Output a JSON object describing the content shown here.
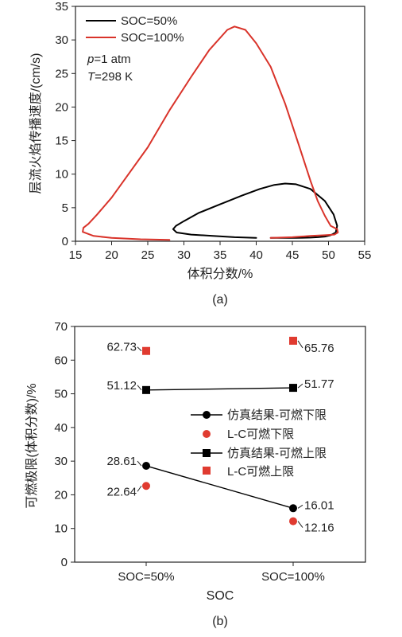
{
  "chart_data": [
    {
      "type": "line",
      "panel_label": "(a)",
      "xlabel": "体积分数/%",
      "ylabel": "层流火焰传播速度/(cm/s)",
      "xlim": [
        15,
        55
      ],
      "ylim": [
        0,
        35
      ],
      "xticks": [
        "15",
        "20",
        "25",
        "30",
        "35",
        "40",
        "45",
        "50",
        "55"
      ],
      "yticks": [
        "0",
        "5",
        "10",
        "15",
        "20",
        "25",
        "30",
        "35"
      ],
      "legend_position": "top-left",
      "conditions": {
        "pressure_label": "p",
        "pressure_value": "=1 atm",
        "temperature_label": "T",
        "temperature_value": "=298 K"
      },
      "series": [
        {
          "name": "SOC=50%",
          "color": "#000000",
          "x": [
            40.0,
            37.0,
            34.0,
            31.0,
            29.0,
            28.5,
            28.9,
            30.0,
            32.0,
            35.0,
            38.0,
            40.5,
            42.5,
            44.0,
            45.5,
            47.5,
            49.5,
            50.7,
            51.2,
            51.0,
            50.3,
            49.5,
            48.5,
            47.5,
            45.5,
            42.0
          ],
          "y": [
            0.5,
            0.6,
            0.8,
            1.0,
            1.3,
            1.8,
            2.3,
            3.0,
            4.2,
            5.5,
            6.8,
            7.8,
            8.4,
            8.6,
            8.5,
            7.8,
            6.0,
            4.0,
            2.3,
            1.3,
            0.9,
            0.7,
            0.6,
            0.55,
            0.5,
            0.5
          ]
        },
        {
          "name": "SOC=100%",
          "color": "#d9332a",
          "x": [
            28.0,
            24.0,
            20.0,
            17.5,
            16.0,
            16.1,
            16.8,
            18.0,
            20.0,
            22.0,
            25.0,
            28.0,
            31.0,
            33.5,
            36.0,
            37.0,
            38.5,
            40.0,
            42.0,
            44.0,
            46.0,
            47.5,
            48.5,
            49.5,
            50.3,
            51.2,
            51.3,
            50.8,
            49.5,
            47.5,
            45.0,
            42.0
          ],
          "y": [
            0.2,
            0.3,
            0.5,
            0.8,
            1.4,
            2.0,
            2.6,
            4.0,
            6.5,
            9.5,
            14.0,
            19.5,
            24.5,
            28.5,
            31.5,
            32.0,
            31.5,
            29.5,
            26.0,
            20.5,
            14.0,
            9.0,
            6.0,
            3.8,
            2.3,
            1.8,
            1.3,
            1.0,
            0.9,
            0.8,
            0.6,
            0.5
          ]
        }
      ]
    },
    {
      "type": "scatter",
      "panel_label": "(b)",
      "xlabel": "SOC",
      "ylabel": "可燃极限(体积分数)/%",
      "categories": [
        "SOC=50%",
        "SOC=100%"
      ],
      "ylim": [
        0,
        70
      ],
      "yticks": [
        "0",
        "10",
        "20",
        "30",
        "40",
        "50",
        "60",
        "70"
      ],
      "legend_position": "center-right",
      "series": [
        {
          "name": "仿真结果-可燃下限",
          "marker": "circle",
          "color": "#000000",
          "connected": true,
          "values": [
            28.61,
            16.01
          ],
          "labels": [
            "28.61",
            "16.01"
          ]
        },
        {
          "name": "L-C可燃下限",
          "marker": "circle",
          "color": "#e03b30",
          "connected": false,
          "values": [
            22.64,
            12.16
          ],
          "labels": [
            "22.64",
            "12.16"
          ]
        },
        {
          "name": "仿真结果-可燃上限",
          "marker": "square",
          "color": "#000000",
          "connected": true,
          "values": [
            51.12,
            51.77
          ],
          "labels": [
            "51.12",
            "51.77"
          ]
        },
        {
          "name": "L-C可燃上限",
          "marker": "square",
          "color": "#e03b30",
          "connected": false,
          "values": [
            62.73,
            65.76
          ],
          "labels": [
            "62.73",
            "65.76"
          ]
        }
      ]
    }
  ]
}
